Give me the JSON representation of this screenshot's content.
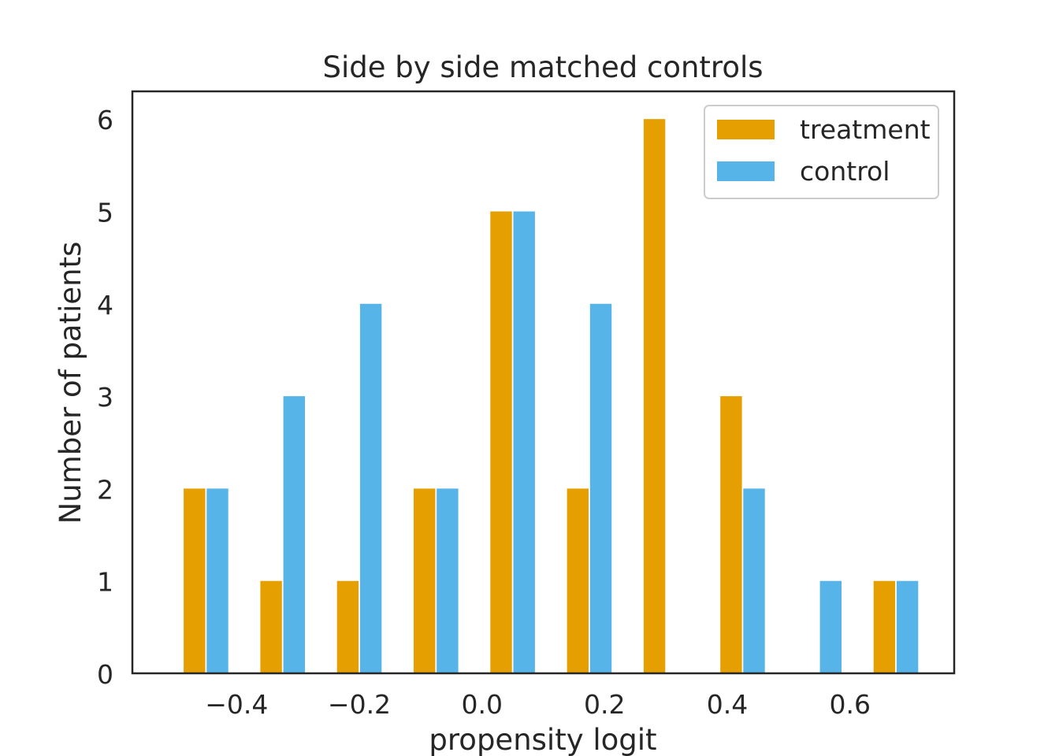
{
  "chart_data": {
    "type": "bar",
    "title": "Side by side matched controls",
    "xlabel": "propensity logit",
    "ylabel": "Number of patients",
    "xlim": [
      -0.57,
      0.77
    ],
    "ylim": [
      0,
      6.3
    ],
    "x_ticks": [
      -0.4,
      -0.2,
      0.0,
      0.2,
      0.4,
      0.6
    ],
    "x_tick_labels": [
      "−0.4",
      "−0.2",
      "0.0",
      "0.2",
      "0.4",
      "0.6"
    ],
    "y_ticks": [
      0,
      1,
      2,
      3,
      4,
      5,
      6
    ],
    "y_tick_labels": [
      "0",
      "1",
      "2",
      "3",
      "4",
      "5",
      "6"
    ],
    "legend_position": "upper right",
    "grid": false,
    "bin_centers": [
      -0.45,
      -0.325,
      -0.2,
      -0.075,
      0.05,
      0.175,
      0.3,
      0.425,
      0.55,
      0.675
    ],
    "series": [
      {
        "name": "treatment",
        "color": "#E69F00",
        "values": [
          2,
          1,
          1,
          2,
          5,
          2,
          6,
          3,
          0,
          1
        ]
      },
      {
        "name": "control",
        "color": "#56B4E9",
        "values": [
          2,
          3,
          4,
          2,
          5,
          4,
          0,
          2,
          1,
          1
        ]
      }
    ]
  }
}
